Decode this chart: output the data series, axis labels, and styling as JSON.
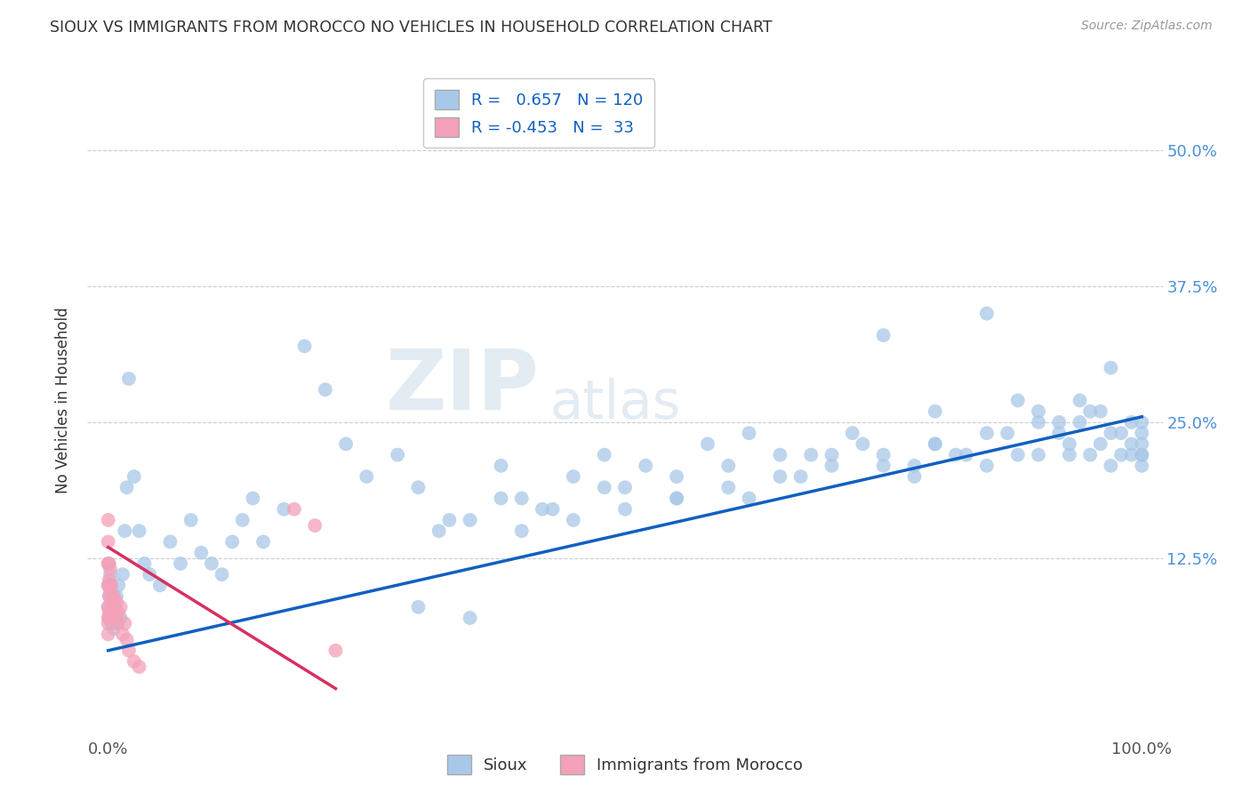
{
  "title": "SIOUX VS IMMIGRANTS FROM MOROCCO NO VEHICLES IN HOUSEHOLD CORRELATION CHART",
  "source": "Source: ZipAtlas.com",
  "ylabel": "No Vehicles in Household",
  "xlim": [
    -0.02,
    1.02
  ],
  "ylim": [
    -0.04,
    0.58
  ],
  "yticks": [
    0.0,
    0.125,
    0.25,
    0.375,
    0.5
  ],
  "ytick_labels": [
    "",
    "12.5%",
    "25.0%",
    "37.5%",
    "50.0%"
  ],
  "r_sioux": 0.657,
  "n_sioux": 120,
  "r_morocco": -0.453,
  "n_morocco": 33,
  "legend_label_1": "Sioux",
  "legend_label_2": "Immigrants from Morocco",
  "color_sioux": "#a8c8e8",
  "color_morocco": "#f4a0b8",
  "line_color_sioux": "#1060c0",
  "line_color_morocco": "#d83060",
  "background_color": "#ffffff",
  "grid_color": "#cccccc",
  "watermark_zip": "ZIP",
  "watermark_atlas": "atlas",
  "sioux_x": [
    0.0,
    0.0,
    0.0,
    0.001,
    0.001,
    0.002,
    0.002,
    0.003,
    0.004,
    0.005,
    0.005,
    0.006,
    0.007,
    0.008,
    0.009,
    0.01,
    0.012,
    0.014,
    0.016,
    0.018,
    0.02,
    0.025,
    0.03,
    0.035,
    0.04,
    0.05,
    0.06,
    0.07,
    0.08,
    0.09,
    0.1,
    0.11,
    0.12,
    0.13,
    0.14,
    0.15,
    0.17,
    0.19,
    0.21,
    0.23,
    0.25,
    0.28,
    0.3,
    0.32,
    0.35,
    0.38,
    0.4,
    0.42,
    0.45,
    0.48,
    0.5,
    0.52,
    0.55,
    0.58,
    0.6,
    0.62,
    0.65,
    0.67,
    0.7,
    0.72,
    0.75,
    0.78,
    0.8,
    0.82,
    0.85,
    0.87,
    0.9,
    0.92,
    0.93,
    0.94,
    0.95,
    0.96,
    0.97,
    0.97,
    0.98,
    0.98,
    0.99,
    0.99,
    0.99,
    1.0,
    1.0,
    1.0,
    1.0,
    1.0,
    1.0,
    0.55,
    0.48,
    0.43,
    0.38,
    0.33,
    0.75,
    0.8,
    0.85,
    0.88,
    0.9,
    0.92,
    0.94,
    0.96,
    0.62,
    0.68,
    0.73,
    0.78,
    0.83,
    0.88,
    0.93,
    0.97,
    0.3,
    0.35,
    0.4,
    0.45,
    0.5,
    0.55,
    0.6,
    0.65,
    0.7,
    0.75,
    0.8,
    0.85,
    0.9,
    0.95
  ],
  "sioux_y": [
    0.08,
    0.1,
    0.12,
    0.07,
    0.09,
    0.1,
    0.11,
    0.065,
    0.08,
    0.09,
    0.06,
    0.08,
    0.07,
    0.09,
    0.065,
    0.1,
    0.07,
    0.11,
    0.15,
    0.19,
    0.29,
    0.2,
    0.15,
    0.12,
    0.11,
    0.1,
    0.14,
    0.12,
    0.16,
    0.13,
    0.12,
    0.11,
    0.14,
    0.16,
    0.18,
    0.14,
    0.17,
    0.32,
    0.28,
    0.23,
    0.2,
    0.22,
    0.19,
    0.15,
    0.16,
    0.21,
    0.18,
    0.17,
    0.2,
    0.22,
    0.19,
    0.21,
    0.2,
    0.23,
    0.21,
    0.18,
    0.22,
    0.2,
    0.22,
    0.24,
    0.21,
    0.2,
    0.23,
    0.22,
    0.21,
    0.24,
    0.22,
    0.24,
    0.22,
    0.25,
    0.22,
    0.23,
    0.24,
    0.21,
    0.22,
    0.24,
    0.23,
    0.22,
    0.25,
    0.22,
    0.24,
    0.21,
    0.23,
    0.25,
    0.22,
    0.18,
    0.19,
    0.17,
    0.18,
    0.16,
    0.33,
    0.26,
    0.35,
    0.27,
    0.26,
    0.25,
    0.27,
    0.26,
    0.24,
    0.22,
    0.23,
    0.21,
    0.22,
    0.22,
    0.23,
    0.3,
    0.08,
    0.07,
    0.15,
    0.16,
    0.17,
    0.18,
    0.19,
    0.2,
    0.21,
    0.22,
    0.23,
    0.24,
    0.25,
    0.26
  ],
  "morocco_x": [
    0.0,
    0.0,
    0.0,
    0.0,
    0.0,
    0.0,
    0.0,
    0.0,
    0.001,
    0.001,
    0.001,
    0.001,
    0.002,
    0.002,
    0.003,
    0.003,
    0.004,
    0.005,
    0.006,
    0.007,
    0.008,
    0.009,
    0.01,
    0.012,
    0.014,
    0.016,
    0.018,
    0.02,
    0.025,
    0.03,
    0.18,
    0.2,
    0.22
  ],
  "morocco_y": [
    0.16,
    0.14,
    0.12,
    0.1,
    0.08,
    0.07,
    0.065,
    0.055,
    0.12,
    0.105,
    0.09,
    0.075,
    0.115,
    0.095,
    0.1,
    0.085,
    0.08,
    0.09,
    0.075,
    0.07,
    0.085,
    0.065,
    0.075,
    0.08,
    0.055,
    0.065,
    0.05,
    0.04,
    0.03,
    0.025,
    0.17,
    0.155,
    0.04
  ],
  "sioux_line_x": [
    0.0,
    1.0
  ],
  "sioux_line_y": [
    0.04,
    0.255
  ],
  "morocco_line_x": [
    0.0,
    0.22
  ],
  "morocco_line_y": [
    0.135,
    0.005
  ]
}
